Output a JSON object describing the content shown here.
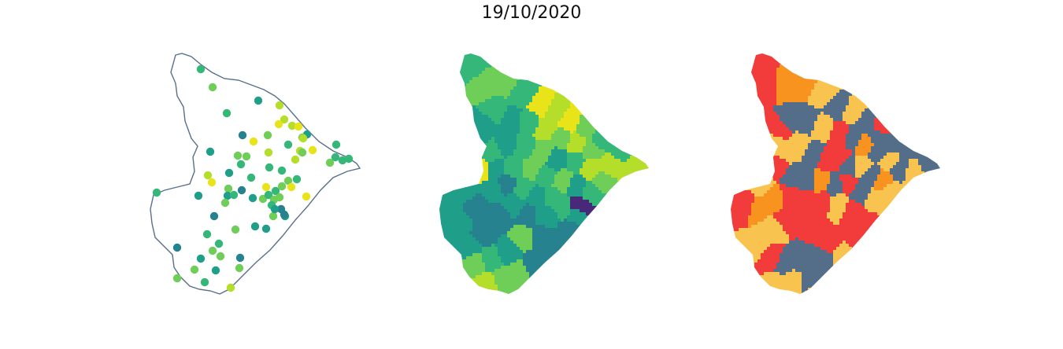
{
  "title": "19/10/2020",
  "colors": {
    "outline": "#5a6f8a",
    "viridis": [
      "#482878",
      "#3e4a89",
      "#31688e",
      "#26828e",
      "#1f9e89",
      "#35b779",
      "#6ece58",
      "#b5de2b",
      "#e8e419"
    ],
    "categories": [
      "#f23b3b",
      "#f7931e",
      "#f8c44f",
      "#546e8a"
    ]
  }
}
